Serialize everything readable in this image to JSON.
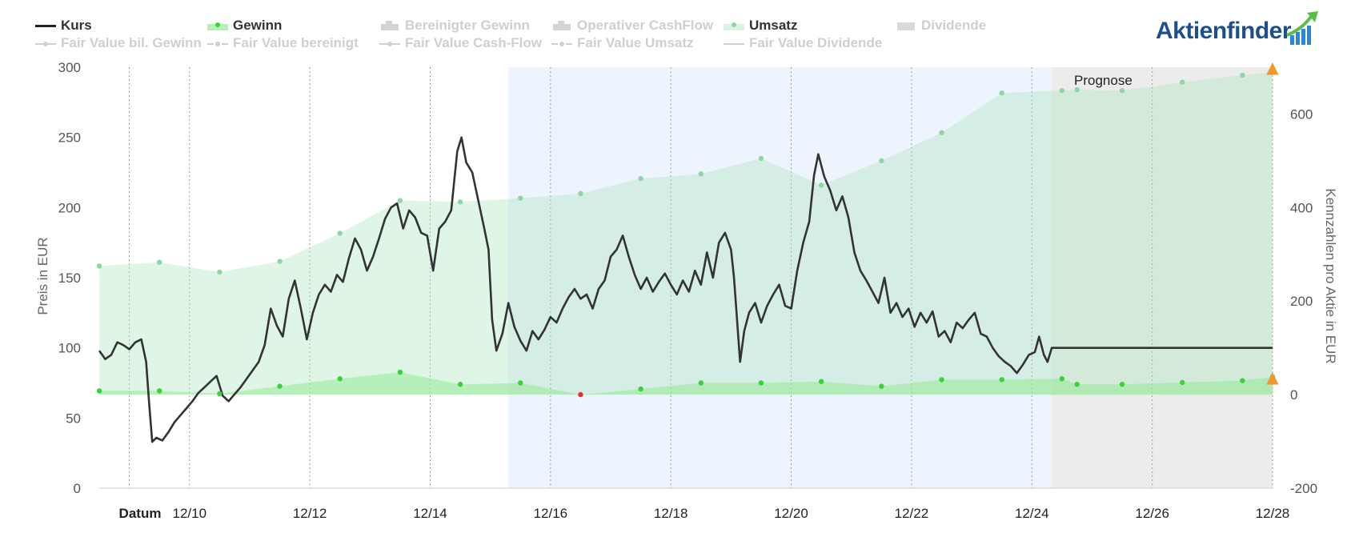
{
  "legend": {
    "row1": [
      {
        "label": "Kurs",
        "active": true,
        "symbol": "line",
        "color": "#333333"
      },
      {
        "label": "Gewinn",
        "active": true,
        "symbol": "area-dot",
        "color": "#3ad13a"
      },
      {
        "label": "Bereinigter Gewinn",
        "active": false,
        "symbol": "column"
      },
      {
        "label": "Operativer CashFlow",
        "active": false,
        "symbol": "column"
      },
      {
        "label": "Umsatz",
        "active": true,
        "symbol": "area-dot",
        "color": "#8fd6a6"
      },
      {
        "label": "Dividende",
        "active": false,
        "symbol": "box"
      }
    ],
    "row2": [
      {
        "label": "Fair Value bil. Gewinn",
        "active": false,
        "symbol": "line-dot"
      },
      {
        "label": "Fair Value bereinigt",
        "active": false,
        "symbol": "dash-dot"
      },
      {
        "label": "Fair Value Cash-Flow",
        "active": false,
        "symbol": "line-dot"
      },
      {
        "label": "Fair Value Umsatz",
        "active": false,
        "symbol": "dash-dot"
      },
      {
        "label": "Fair Value Dividende",
        "active": false,
        "symbol": "line"
      }
    ]
  },
  "logo": {
    "text": "Aktienfinder"
  },
  "forecast_label": "Prognose",
  "chart_data": {
    "type": "line",
    "title": "",
    "xlabel": "Datum",
    "ylabel_left": "Preis in EUR",
    "ylabel_right": "Kennzahlen pro Aktie in EUR",
    "ylim_left": [
      0,
      300
    ],
    "ylim_right": [
      -200,
      700
    ],
    "yticks_left": [
      0,
      50,
      100,
      150,
      200,
      250,
      300
    ],
    "yticks_right": [
      -200,
      0,
      200,
      400,
      600
    ],
    "x_range": [
      2008.5,
      2028
    ],
    "xticks": [
      {
        "x": 2010,
        "label": "12/10"
      },
      {
        "x": 2012,
        "label": "12/12"
      },
      {
        "x": 2014,
        "label": "12/14"
      },
      {
        "x": 2016,
        "label": "12/16"
      },
      {
        "x": 2018,
        "label": "12/18"
      },
      {
        "x": 2020,
        "label": "12/20"
      },
      {
        "x": 2022,
        "label": "12/22"
      },
      {
        "x": 2024,
        "label": "12/24"
      },
      {
        "x": 2026,
        "label": "12/26"
      },
      {
        "x": 2028,
        "label": "12/28"
      }
    ],
    "vertical_gridlines_at": [
      2009,
      2010,
      2012,
      2014,
      2016,
      2018,
      2020,
      2022,
      2024,
      2026,
      2028
    ],
    "grid": true,
    "shaded_bands": [
      {
        "from": 2015.3,
        "to": 2024.33,
        "color": "#eef4fd"
      },
      {
        "from": 2024.33,
        "to": 2028,
        "color": "#ececec"
      }
    ],
    "forecast_start": 2024.33,
    "series": [
      {
        "name": "Kurs",
        "axis": "left",
        "color": "#333333",
        "points": [
          [
            2008.5,
            98
          ],
          [
            2008.6,
            92
          ],
          [
            2008.7,
            95
          ],
          [
            2008.8,
            104
          ],
          [
            2008.9,
            102
          ],
          [
            2009.0,
            99
          ],
          [
            2009.1,
            104
          ],
          [
            2009.2,
            106
          ],
          [
            2009.28,
            90
          ],
          [
            2009.33,
            60
          ],
          [
            2009.38,
            33
          ],
          [
            2009.45,
            36
          ],
          [
            2009.55,
            34
          ],
          [
            2009.65,
            40
          ],
          [
            2009.75,
            47
          ],
          [
            2009.85,
            52
          ],
          [
            2009.95,
            57
          ],
          [
            2010.05,
            62
          ],
          [
            2010.15,
            68
          ],
          [
            2010.25,
            72
          ],
          [
            2010.35,
            76
          ],
          [
            2010.45,
            80
          ],
          [
            2010.55,
            66
          ],
          [
            2010.65,
            62
          ],
          [
            2010.75,
            67
          ],
          [
            2010.85,
            72
          ],
          [
            2010.95,
            78
          ],
          [
            2011.05,
            84
          ],
          [
            2011.15,
            90
          ],
          [
            2011.25,
            102
          ],
          [
            2011.35,
            128
          ],
          [
            2011.45,
            116
          ],
          [
            2011.55,
            108
          ],
          [
            2011.65,
            135
          ],
          [
            2011.75,
            148
          ],
          [
            2011.85,
            128
          ],
          [
            2011.95,
            106
          ],
          [
            2012.05,
            125
          ],
          [
            2012.15,
            138
          ],
          [
            2012.25,
            145
          ],
          [
            2012.35,
            140
          ],
          [
            2012.45,
            152
          ],
          [
            2012.55,
            147
          ],
          [
            2012.65,
            164
          ],
          [
            2012.75,
            178
          ],
          [
            2012.85,
            170
          ],
          [
            2012.95,
            155
          ],
          [
            2013.05,
            165
          ],
          [
            2013.15,
            178
          ],
          [
            2013.25,
            192
          ],
          [
            2013.35,
            200
          ],
          [
            2013.45,
            203
          ],
          [
            2013.55,
            185
          ],
          [
            2013.65,
            198
          ],
          [
            2013.75,
            193
          ],
          [
            2013.85,
            182
          ],
          [
            2013.95,
            180
          ],
          [
            2014.05,
            155
          ],
          [
            2014.15,
            185
          ],
          [
            2014.25,
            190
          ],
          [
            2014.35,
            198
          ],
          [
            2014.45,
            240
          ],
          [
            2014.52,
            250
          ],
          [
            2014.6,
            232
          ],
          [
            2014.7,
            225
          ],
          [
            2014.8,
            205
          ],
          [
            2014.9,
            185
          ],
          [
            2014.97,
            170
          ],
          [
            2015.03,
            120
          ],
          [
            2015.1,
            98
          ],
          [
            2015.2,
            110
          ],
          [
            2015.3,
            132
          ],
          [
            2015.4,
            115
          ],
          [
            2015.5,
            105
          ],
          [
            2015.6,
            98
          ],
          [
            2015.7,
            112
          ],
          [
            2015.8,
            106
          ],
          [
            2015.9,
            113
          ],
          [
            2016.0,
            122
          ],
          [
            2016.1,
            118
          ],
          [
            2016.2,
            128
          ],
          [
            2016.3,
            136
          ],
          [
            2016.4,
            142
          ],
          [
            2016.5,
            135
          ],
          [
            2016.6,
            138
          ],
          [
            2016.7,
            128
          ],
          [
            2016.8,
            142
          ],
          [
            2016.9,
            148
          ],
          [
            2017.0,
            165
          ],
          [
            2017.1,
            170
          ],
          [
            2017.2,
            180
          ],
          [
            2017.3,
            165
          ],
          [
            2017.4,
            152
          ],
          [
            2017.5,
            142
          ],
          [
            2017.6,
            150
          ],
          [
            2017.7,
            140
          ],
          [
            2017.8,
            147
          ],
          [
            2017.9,
            153
          ],
          [
            2018.0,
            145
          ],
          [
            2018.1,
            138
          ],
          [
            2018.2,
            148
          ],
          [
            2018.3,
            140
          ],
          [
            2018.4,
            155
          ],
          [
            2018.5,
            145
          ],
          [
            2018.6,
            168
          ],
          [
            2018.7,
            150
          ],
          [
            2018.8,
            175
          ],
          [
            2018.9,
            182
          ],
          [
            2019.0,
            170
          ],
          [
            2019.05,
            150
          ],
          [
            2019.1,
            120
          ],
          [
            2019.15,
            90
          ],
          [
            2019.22,
            112
          ],
          [
            2019.3,
            125
          ],
          [
            2019.4,
            132
          ],
          [
            2019.5,
            118
          ],
          [
            2019.6,
            130
          ],
          [
            2019.7,
            138
          ],
          [
            2019.8,
            145
          ],
          [
            2019.9,
            130
          ],
          [
            2020.0,
            128
          ],
          [
            2020.1,
            155
          ],
          [
            2020.2,
            175
          ],
          [
            2020.3,
            190
          ],
          [
            2020.38,
            223
          ],
          [
            2020.45,
            238
          ],
          [
            2020.55,
            222
          ],
          [
            2020.65,
            212
          ],
          [
            2020.75,
            198
          ],
          [
            2020.85,
            208
          ],
          [
            2020.95,
            193
          ],
          [
            2021.05,
            168
          ],
          [
            2021.15,
            155
          ],
          [
            2021.25,
            148
          ],
          [
            2021.35,
            140
          ],
          [
            2021.45,
            132
          ],
          [
            2021.55,
            150
          ],
          [
            2021.65,
            125
          ],
          [
            2021.75,
            132
          ],
          [
            2021.85,
            122
          ],
          [
            2021.95,
            128
          ],
          [
            2022.05,
            115
          ],
          [
            2022.15,
            125
          ],
          [
            2022.25,
            118
          ],
          [
            2022.35,
            126
          ],
          [
            2022.45,
            108
          ],
          [
            2022.55,
            112
          ],
          [
            2022.65,
            104
          ],
          [
            2022.75,
            118
          ],
          [
            2022.85,
            114
          ],
          [
            2022.95,
            120
          ],
          [
            2023.05,
            125
          ],
          [
            2023.15,
            110
          ],
          [
            2023.25,
            108
          ],
          [
            2023.35,
            100
          ],
          [
            2023.45,
            94
          ],
          [
            2023.55,
            90
          ],
          [
            2023.65,
            87
          ],
          [
            2023.75,
            82
          ],
          [
            2023.85,
            88
          ],
          [
            2023.95,
            95
          ],
          [
            2024.05,
            97
          ],
          [
            2024.12,
            108
          ],
          [
            2024.2,
            95
          ],
          [
            2024.26,
            90
          ],
          [
            2024.33,
            100
          ],
          [
            2025.0,
            100
          ],
          [
            2026.0,
            100
          ],
          [
            2027.0,
            100
          ],
          [
            2028.0,
            100
          ]
        ]
      },
      {
        "name": "Umsatz",
        "axis": "right",
        "color": "#8fd6a6",
        "points": [
          [
            2008.5,
            275
          ],
          [
            2009.5,
            283
          ],
          [
            2010.5,
            262
          ],
          [
            2011.5,
            285
          ],
          [
            2012.5,
            345
          ],
          [
            2013.5,
            415
          ],
          [
            2014.5,
            412
          ],
          [
            2015.5,
            420
          ],
          [
            2016.5,
            430
          ],
          [
            2017.5,
            462
          ],
          [
            2018.5,
            472
          ],
          [
            2019.5,
            505
          ],
          [
            2020.5,
            448
          ],
          [
            2021.5,
            500
          ],
          [
            2022.5,
            560
          ],
          [
            2023.5,
            645
          ],
          [
            2024.5,
            650
          ],
          [
            2024.75,
            652
          ],
          [
            2025.5,
            650
          ],
          [
            2026.5,
            668
          ],
          [
            2027.5,
            683
          ],
          [
            2028.0,
            690
          ]
        ]
      },
      {
        "name": "Gewinn",
        "axis": "right",
        "color": "#3ad13a",
        "points": [
          [
            2008.5,
            8
          ],
          [
            2009.5,
            8
          ],
          [
            2010.5,
            2
          ],
          [
            2011.5,
            18
          ],
          [
            2012.5,
            34
          ],
          [
            2013.5,
            48
          ],
          [
            2014.5,
            22
          ],
          [
            2015.5,
            25
          ],
          [
            2016.5,
            0
          ],
          [
            2017.5,
            12
          ],
          [
            2018.5,
            25
          ],
          [
            2019.5,
            25
          ],
          [
            2020.5,
            28
          ],
          [
            2021.5,
            18
          ],
          [
            2022.5,
            32
          ],
          [
            2023.5,
            32
          ],
          [
            2024.5,
            34
          ],
          [
            2024.75,
            22
          ],
          [
            2025.5,
            22
          ],
          [
            2026.5,
            26
          ],
          [
            2027.5,
            30
          ],
          [
            2028.0,
            38
          ]
        ]
      }
    ],
    "annotations": [
      {
        "text": "▲",
        "x": 2028,
        "y_right": 700,
        "color": "#f0982e"
      },
      {
        "text": "▲",
        "x": 2028,
        "y_right": 38,
        "color": "#f0982e"
      }
    ]
  }
}
